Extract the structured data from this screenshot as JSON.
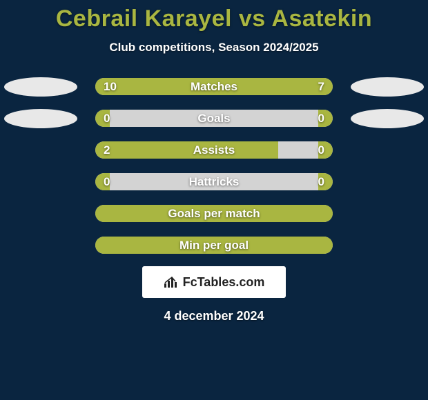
{
  "title_color": "#a9b641",
  "background_color": "#0a2540",
  "track_color": "#d3d3d3",
  "fill_color": "#a9b641",
  "avatar_color": "#e8e8e8",
  "text_color": "#ffffff",
  "title": "Cebrail Karayel vs Asatekin",
  "subtitle": "Club competitions, Season 2024/2025",
  "date": "4 december 2024",
  "brand": "FcTables.com",
  "rows": [
    {
      "label": "Matches",
      "left": "10",
      "right": "7",
      "left_pct": 58.8,
      "right_pct": 41.2,
      "show_vals": true,
      "show_avatars": true
    },
    {
      "label": "Goals",
      "left": "0",
      "right": "0",
      "left_pct": 6,
      "right_pct": 6,
      "show_vals": true,
      "show_avatars": true
    },
    {
      "label": "Assists",
      "left": "2",
      "right": "0",
      "left_pct": 77,
      "right_pct": 6,
      "show_vals": true,
      "show_avatars": false
    },
    {
      "label": "Hattricks",
      "left": "0",
      "right": "0",
      "left_pct": 6,
      "right_pct": 6,
      "show_vals": true,
      "show_avatars": false
    },
    {
      "label": "Goals per match",
      "left": "",
      "right": "",
      "left_pct": 97,
      "right_pct": 3,
      "show_vals": false,
      "show_avatars": false
    },
    {
      "label": "Min per goal",
      "left": "",
      "right": "",
      "left_pct": 100,
      "right_pct": 0,
      "show_vals": false,
      "show_avatars": false
    }
  ]
}
